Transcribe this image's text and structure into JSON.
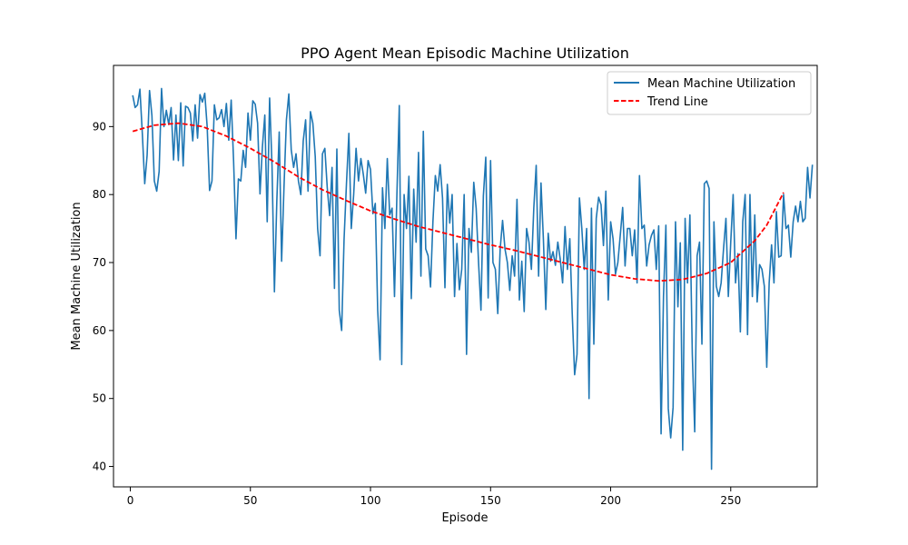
{
  "chart_data": {
    "type": "line",
    "title": "PPO Agent Mean Episodic Machine Utilization",
    "xlabel": "Episode",
    "ylabel": "Mean Machine Utilization",
    "xlim": [
      -7,
      286
    ],
    "ylim": [
      37,
      99
    ],
    "xticks": [
      0,
      50,
      100,
      150,
      200,
      250
    ],
    "yticks": [
      40,
      50,
      60,
      70,
      80,
      90
    ],
    "grid": false,
    "legend_position": "upper right",
    "series": [
      {
        "name": "Mean Machine Utilization",
        "color": "#1f77b4",
        "style": "solid",
        "x_start": 1,
        "x_step": 1,
        "values": [
          94.6,
          92.8,
          93.2,
          95.5,
          89.0,
          81.6,
          85.8,
          95.3,
          91.6,
          82.0,
          80.5,
          83.4,
          95.6,
          90.0,
          92.4,
          90.3,
          92.8,
          85.1,
          91.7,
          85.0,
          93.5,
          84.2,
          93.0,
          92.8,
          92.0,
          87.9,
          93.2,
          88.3,
          94.7,
          93.6,
          94.9,
          90.0,
          80.6,
          82.0,
          93.2,
          91.0,
          91.3,
          92.5,
          90.0,
          93.4,
          88.0,
          93.9,
          85.0,
          73.5,
          82.3,
          82.0,
          86.5,
          84.0,
          92.0,
          88.0,
          93.8,
          93.3,
          90.5,
          80.1,
          87.0,
          91.7,
          76.0,
          94.2,
          84.3,
          65.7,
          79.0,
          89.2,
          70.2,
          81.2,
          91.0,
          94.8,
          86.6,
          84.0,
          86.0,
          82.0,
          80.0,
          87.9,
          91.0,
          80.5,
          92.2,
          90.5,
          85.6,
          75.0,
          71.0,
          86.0,
          86.8,
          81.0,
          76.9,
          84.0,
          66.2,
          86.7,
          63.0,
          60.0,
          73.4,
          81.6,
          89.0,
          75.0,
          80.0,
          86.8,
          82.0,
          85.3,
          83.0,
          80.2,
          85.0,
          83.7,
          77.2,
          78.7,
          63.0,
          55.7,
          81.0,
          75.0,
          85.3,
          77.0,
          78.0,
          65.0,
          80.0,
          93.1,
          55.0,
          80.0,
          75.0,
          82.7,
          64.7,
          80.8,
          73.0,
          86.2,
          68.0,
          89.3,
          72.0,
          71.0,
          66.4,
          76.0,
          82.8,
          80.5,
          84.4,
          79.5,
          66.3,
          81.5,
          75.8,
          80.0,
          65.0,
          72.8,
          66.0,
          69.0,
          80.0,
          56.5,
          75.0,
          71.5,
          81.8,
          78.0,
          70.0,
          63.0,
          79.8,
          85.5,
          64.8,
          85.0,
          70.0,
          69.0,
          62.5,
          72.0,
          76.2,
          72.0,
          70.0,
          65.9,
          71.0,
          68.0,
          79.3,
          64.5,
          70.2,
          62.8,
          75.0,
          73.0,
          69.0,
          78.0,
          84.3,
          68.0,
          81.7,
          73.4,
          63.1,
          74.3,
          70.2,
          71.6,
          69.6,
          73.0,
          70.5,
          67.0,
          75.3,
          69.0,
          73.5,
          62.5,
          53.5,
          56.5,
          79.5,
          75.0,
          69.0,
          75.0,
          50.0,
          78.0,
          58.0,
          76.5,
          79.6,
          78.5,
          72.5,
          80.5,
          64.5,
          76.0,
          73.5,
          68.3,
          70.0,
          74.0,
          78.1,
          69.5,
          75.0,
          75.0,
          71.0,
          74.8,
          67.0,
          82.8,
          75.0,
          75.5,
          69.5,
          72.6,
          74.0,
          74.8,
          69.0,
          75.4,
          44.8,
          65.0,
          75.5,
          48.5,
          44.2,
          48.7,
          76.0,
          63.5,
          72.9,
          42.4,
          76.5,
          67.0,
          77.0,
          56.5,
          45.1,
          71.0,
          73.0,
          58.0,
          81.6,
          82.0,
          80.9,
          39.6,
          76.0,
          66.5,
          65.0,
          67.0,
          72.0,
          76.5,
          65.0,
          73.0,
          80.0,
          67.0,
          71.3,
          59.8,
          76.0,
          80.0,
          59.4,
          80.0,
          65.0,
          77.0,
          64.2,
          69.7,
          69.0,
          66.5,
          54.6,
          67.0,
          72.6,
          67.0,
          77.5,
          70.8,
          71.0,
          80.0,
          75.0,
          75.5,
          70.8,
          76.0,
          78.3,
          76.0,
          79.0,
          76.0,
          76.5,
          84.0,
          79.5,
          84.4
        ]
      },
      {
        "name": "Trend Line",
        "color": "#ff0000",
        "style": "dashed",
        "points": [
          [
            1,
            89.3
          ],
          [
            10,
            90.2
          ],
          [
            20,
            90.5
          ],
          [
            30,
            90.0
          ],
          [
            40,
            88.6
          ],
          [
            50,
            86.8
          ],
          [
            60,
            84.8
          ],
          [
            70,
            82.6
          ],
          [
            80,
            80.7
          ],
          [
            90,
            79.1
          ],
          [
            100,
            77.6
          ],
          [
            110,
            76.4
          ],
          [
            120,
            75.3
          ],
          [
            130,
            74.4
          ],
          [
            140,
            73.5
          ],
          [
            150,
            72.6
          ],
          [
            160,
            71.8
          ],
          [
            170,
            70.9
          ],
          [
            180,
            70.0
          ],
          [
            190,
            69.1
          ],
          [
            200,
            68.2
          ],
          [
            210,
            67.6
          ],
          [
            220,
            67.3
          ],
          [
            230,
            67.5
          ],
          [
            240,
            68.4
          ],
          [
            250,
            70.0
          ],
          [
            260,
            73.2
          ],
          [
            265,
            75.5
          ],
          [
            272,
            80.3
          ]
        ]
      }
    ]
  }
}
